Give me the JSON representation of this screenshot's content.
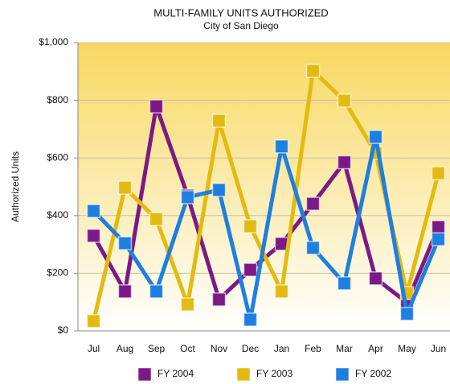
{
  "chart_data": {
    "type": "line",
    "title": "MULTI-FAMILY UNITS AUTHORIZED",
    "subtitle": "City of San Diego",
    "y_label": "Authorized Units",
    "categories": [
      "Jul",
      "Aug",
      "Sep",
      "Oct",
      "Nov",
      "Dec",
      "Jan",
      "Feb",
      "Mar",
      "Apr",
      "May",
      "Jun"
    ],
    "series": [
      {
        "name": "FY 2004",
        "color": "#7b1a86",
        "values": [
          330,
          137,
          779,
          469,
          109,
          212,
          302,
          441,
          585,
          182,
          98,
          360
        ]
      },
      {
        "name": "FY 2003",
        "color": "#e3bb10",
        "values": [
          34,
          497,
          388,
          92,
          729,
          363,
          137,
          902,
          799,
          617,
          131,
          547
        ]
      },
      {
        "name": "FY 2002",
        "color": "#1e7fe0",
        "values": [
          416,
          304,
          137,
          464,
          489,
          39,
          640,
          288,
          165,
          673,
          59,
          318
        ]
      }
    ],
    "ylim": [
      0,
      1000
    ],
    "yticks": [
      {
        "value": 0,
        "label": "$0"
      },
      {
        "value": 200,
        "label": "$200"
      },
      {
        "value": 400,
        "label": "$400"
      },
      {
        "value": 600,
        "label": "$600"
      },
      {
        "value": 800,
        "label": "$800"
      },
      {
        "value": 1000,
        "label": "$1,000"
      }
    ],
    "grid": true,
    "legend": "bottom"
  }
}
